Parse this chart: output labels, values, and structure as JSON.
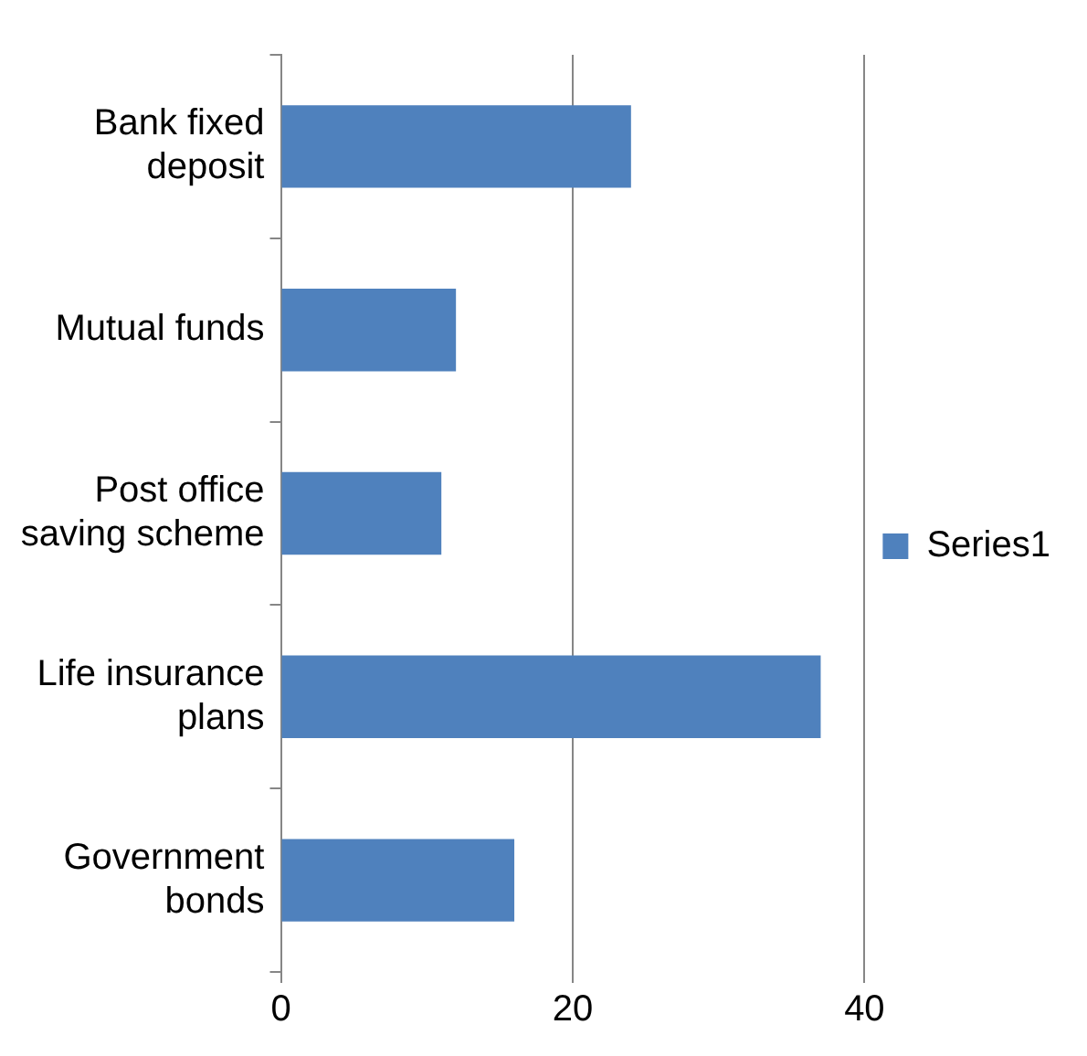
{
  "chart_data": {
    "type": "bar",
    "orientation": "horizontal",
    "categories": [
      "Bank fixed deposit",
      "Mutual funds",
      "Post office saving scheme",
      "Life insurance plans",
      "Government bonds"
    ],
    "series": [
      {
        "name": "Series1",
        "color": "#4f81bd",
        "values": [
          24,
          12,
          11,
          37,
          16
        ]
      }
    ],
    "xlim": [
      0,
      40
    ],
    "xticks": [
      0,
      20,
      40
    ],
    "grid": "x",
    "legend": "right"
  }
}
